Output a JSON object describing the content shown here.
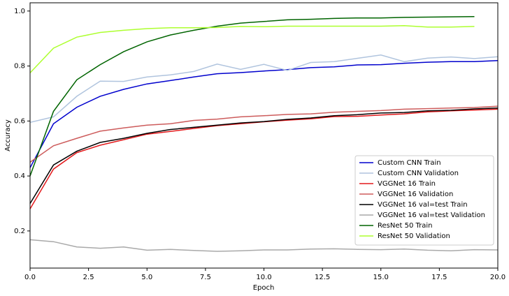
{
  "chart_data": {
    "type": "line",
    "xlabel": "Epoch",
    "ylabel": "Accuracy",
    "x": [
      0,
      1,
      2,
      3,
      4,
      5,
      6,
      7,
      8,
      9,
      10,
      11,
      12,
      13,
      14,
      15,
      16,
      17,
      18,
      19,
      20
    ],
    "xlim": [
      0,
      20
    ],
    "xticks": [
      {
        "value": 0,
        "label": "0.0"
      },
      {
        "value": 2.5,
        "label": "2.5"
      },
      {
        "value": 5,
        "label": "5.0"
      },
      {
        "value": 7.5,
        "label": "7.5"
      },
      {
        "value": 10,
        "label": "10.0"
      },
      {
        "value": 12.5,
        "label": "12.5"
      },
      {
        "value": 15,
        "label": "15.0"
      },
      {
        "value": 17.5,
        "label": "17.5"
      },
      {
        "value": 20,
        "label": "20.0"
      }
    ],
    "ylim": [
      0.065,
      1.03
    ],
    "yticks": [
      0.2,
      0.4,
      0.6,
      0.8,
      {
        "value": 1,
        "label": "1.0"
      }
    ],
    "legend": "lower right",
    "series": [
      {
        "name": "Custom CNN Train",
        "color": "#0000cd",
        "values": [
          0.43,
          0.59,
          0.65,
          0.69,
          0.715,
          0.735,
          0.747,
          0.76,
          0.772,
          0.776,
          0.782,
          0.787,
          0.794,
          0.797,
          0.804,
          0.805,
          0.81,
          0.814,
          0.816,
          0.816,
          0.82
        ]
      },
      {
        "name": "Custom CNN Validation",
        "color": "#b0c4de",
        "values": [
          0.595,
          0.615,
          0.69,
          0.745,
          0.744,
          0.76,
          0.768,
          0.78,
          0.807,
          0.788,
          0.806,
          0.784,
          0.813,
          0.816,
          0.828,
          0.84,
          0.816,
          0.829,
          0.833,
          0.827,
          0.834
        ]
      },
      {
        "name": "VGGNet 16 Train",
        "color": "#e31a1c",
        "values": [
          0.28,
          0.425,
          0.485,
          0.512,
          0.532,
          0.552,
          0.562,
          0.573,
          0.583,
          0.59,
          0.597,
          0.603,
          0.608,
          0.616,
          0.617,
          0.622,
          0.626,
          0.633,
          0.637,
          0.64,
          0.643
        ]
      },
      {
        "name": "VGGNet 16 Validation",
        "color": "#cd5c5c",
        "values": [
          0.45,
          0.51,
          0.537,
          0.563,
          0.575,
          0.585,
          0.59,
          0.602,
          0.607,
          0.615,
          0.619,
          0.624,
          0.626,
          0.632,
          0.635,
          0.638,
          0.643,
          0.645,
          0.647,
          0.649,
          0.654
        ]
      },
      {
        "name": "VGGNet 16 val=test Train",
        "color": "#000000",
        "values": [
          0.3,
          0.44,
          0.49,
          0.522,
          0.537,
          0.555,
          0.569,
          0.577,
          0.585,
          0.593,
          0.598,
          0.606,
          0.611,
          0.619,
          0.623,
          0.629,
          0.631,
          0.637,
          0.639,
          0.644,
          0.647
        ]
      },
      {
        "name": "VGGNet 16 val=test Validation",
        "color": "#a9a9a9",
        "values": [
          0.168,
          0.161,
          0.142,
          0.137,
          0.142,
          0.13,
          0.133,
          0.129,
          0.126,
          0.128,
          0.131,
          0.131,
          0.134,
          0.135,
          0.133,
          0.132,
          0.134,
          0.13,
          0.128,
          0.132,
          0.131
        ]
      },
      {
        "name": "ResNet 50 Train",
        "color": "#006400",
        "values": [
          0.4,
          0.635,
          0.75,
          0.805,
          0.852,
          0.888,
          0.913,
          0.93,
          0.945,
          0.956,
          0.962,
          0.968,
          0.97,
          0.973,
          0.975,
          0.975,
          0.977,
          0.978,
          0.979,
          0.98,
          null
        ]
      },
      {
        "name": "ResNet 50 Validation",
        "color": "#adff2f",
        "values": [
          0.775,
          0.865,
          0.905,
          0.922,
          0.93,
          0.936,
          0.939,
          0.939,
          0.94,
          0.944,
          0.943,
          0.945,
          0.945,
          0.945,
          0.945,
          0.945,
          0.947,
          0.942,
          0.942,
          0.944,
          null
        ]
      }
    ]
  }
}
